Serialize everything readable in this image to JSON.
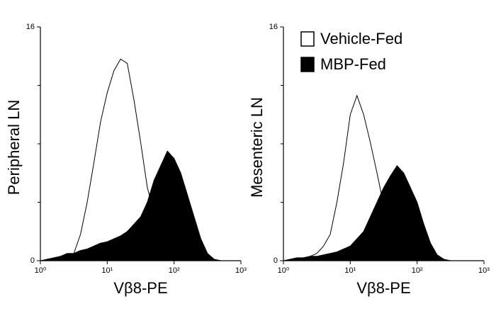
{
  "chart_data": [
    {
      "type": "area",
      "x_label": "Vβ8-PE",
      "y_label": "Peripheral LN",
      "xlog": true,
      "x": [
        1,
        1.259,
        1.585,
        1.995,
        2.512,
        3.162,
        3.981,
        5.012,
        6.31,
        7.943,
        10,
        12.59,
        15.85,
        19.95,
        25.12,
        31.62,
        39.81,
        50.12,
        63.1,
        79.43,
        100,
        125.9,
        158.5,
        199.5,
        251.2,
        316.2,
        398.1,
        501.2,
        631,
        794.3,
        1000
      ],
      "series": [
        {
          "color": "#ffffff",
          "values": [
            0,
            0,
            0.1,
            0.3,
            0.3,
            0.5,
            1.8,
            4,
            6.7,
            9.5,
            11.5,
            13,
            13.8,
            13.5,
            11,
            8.1,
            5,
            3.3,
            2,
            1,
            0.5,
            0.3,
            0.1,
            0,
            0,
            0,
            0,
            0,
            0,
            0,
            0
          ]
        },
        {
          "color": "#000000",
          "values": [
            0,
            0.1,
            0.2,
            0.3,
            0.5,
            0.5,
            0.7,
            0.8,
            1,
            1.2,
            1.3,
            1.5,
            1.7,
            2,
            2.5,
            3,
            4,
            5.5,
            6.5,
            7.5,
            7,
            6,
            4.5,
            3,
            1.5,
            0.5,
            0.1,
            0,
            0,
            0,
            0
          ]
        }
      ],
      "xlim": [
        1,
        1000
      ],
      "xticks": [
        {
          "value": 1,
          "label": "10⁰"
        },
        {
          "value": 10,
          "label": "10¹"
        },
        {
          "value": 100,
          "label": "10²"
        },
        {
          "value": 1000,
          "label": "10³"
        }
      ],
      "ylim": [
        0,
        16
      ],
      "yticks": [
        0,
        16
      ],
      "yminor": [
        4,
        8,
        12
      ]
    },
    {
      "type": "area",
      "x_label": "Vβ8-PE",
      "y_label": "Mesenteric LN",
      "xlog": true,
      "legend": "top",
      "x": [
        1,
        1.259,
        1.585,
        1.995,
        2.512,
        3.162,
        3.981,
        5.012,
        6.31,
        7.943,
        10,
        12.59,
        15.85,
        19.95,
        25.12,
        31.62,
        39.81,
        50.12,
        63.1,
        79.43,
        100,
        125.9,
        158.5,
        199.5,
        251.2,
        316.2,
        398.1,
        501.2,
        631,
        794.3,
        1000
      ],
      "series": [
        {
          "name": "Vehicle-Fed",
          "color": "#ffffff",
          "values": [
            0,
            0,
            0.1,
            0.2,
            0.3,
            0.5,
            1,
            1.8,
            4,
            6.7,
            10,
            11.3,
            10,
            8.1,
            6,
            3.8,
            2,
            1,
            0.5,
            0.3,
            0.2,
            0.1,
            0,
            0,
            0,
            0,
            0,
            0,
            0,
            0,
            0
          ]
        },
        {
          "name": "MBP-Fed",
          "color": "#000000",
          "values": [
            0,
            0.1,
            0.2,
            0.2,
            0.3,
            0.3,
            0.4,
            0.5,
            0.6,
            0.8,
            1,
            1.5,
            2,
            3,
            4,
            5,
            5.8,
            6.5,
            6,
            5,
            4,
            2.5,
            1.2,
            0.4,
            0.1,
            0,
            0,
            0,
            0,
            0,
            0
          ]
        }
      ],
      "xlim": [
        1,
        1000
      ],
      "xticks": [
        {
          "value": 1,
          "label": "10⁰"
        },
        {
          "value": 10,
          "label": "10¹"
        },
        {
          "value": 100,
          "label": "10²"
        },
        {
          "value": 1000,
          "label": "10³"
        }
      ],
      "ylim": [
        0,
        16
      ],
      "yticks": [
        0,
        16
      ],
      "yminor": [
        4,
        8,
        12
      ]
    }
  ]
}
